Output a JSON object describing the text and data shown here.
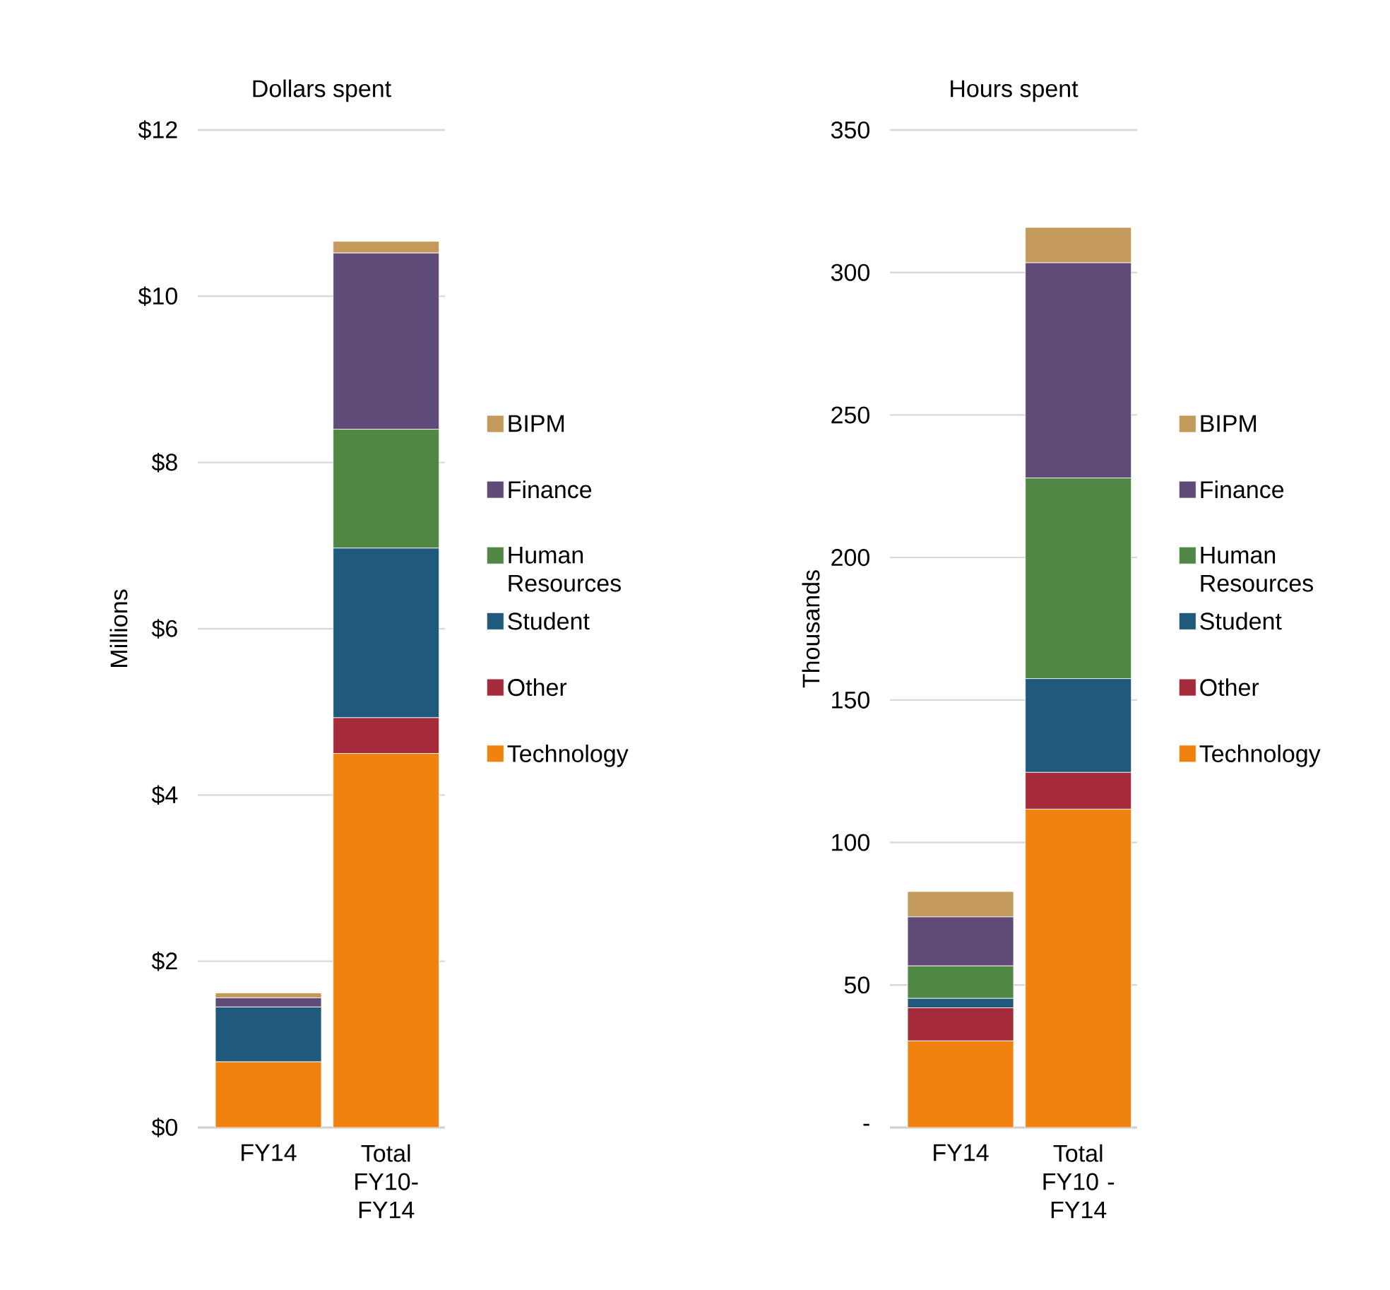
{
  "chart_data": [
    {
      "type": "bar",
      "stacked": true,
      "title": "Dollars spent",
      "ylabel": "Millions",
      "categories": [
        "FY14",
        "Total FY10-FY14"
      ],
      "series": [
        {
          "name": "Technology",
          "color": "#f0820f",
          "values": [
            0.79,
            4.5
          ]
        },
        {
          "name": "Other",
          "color": "#a52a3a",
          "values": [
            0,
            0.43
          ]
        },
        {
          "name": "Student",
          "color": "#1f5a7d",
          "values": [
            0.66,
            2.04
          ]
        },
        {
          "name": "Human Resources",
          "color": "#508745",
          "values": [
            0,
            1.43
          ]
        },
        {
          "name": "Finance",
          "color": "#604a77",
          "values": [
            0.11,
            2.12
          ]
        },
        {
          "name": "BIPM",
          "color": "#c39a5c",
          "values": [
            0.06,
            0.14
          ]
        }
      ],
      "ylim": [
        0,
        12
      ],
      "yticks": [
        {
          "value": 0,
          "label": "$0"
        },
        {
          "value": 2,
          "label": "$2"
        },
        {
          "value": 4,
          "label": "$4"
        },
        {
          "value": 6,
          "label": "$6"
        },
        {
          "value": 8,
          "label": "$8"
        },
        {
          "value": 10,
          "label": "$10"
        },
        {
          "value": 12,
          "label": "$12"
        }
      ],
      "grid": "y",
      "legend": "right"
    },
    {
      "type": "bar",
      "stacked": true,
      "title": "Hours spent",
      "ylabel": "Thousands",
      "categories": [
        "FY14",
        "Total FY10 - FY14"
      ],
      "series": [
        {
          "name": "Technology",
          "color": "#f0820f",
          "values": [
            30.4,
            111.7
          ]
        },
        {
          "name": "Other",
          "color": "#a52a3a",
          "values": [
            11.6,
            12.9
          ]
        },
        {
          "name": "Student",
          "color": "#1f5a7d",
          "values": [
            3.3,
            32.9
          ]
        },
        {
          "name": "Human Resources",
          "color": "#508745",
          "values": [
            11.4,
            70.4
          ]
        },
        {
          "name": "Finance",
          "color": "#604a77",
          "values": [
            17.2,
            75.5
          ]
        },
        {
          "name": "BIPM",
          "color": "#c39a5c",
          "values": [
            8.9,
            12.4
          ]
        }
      ],
      "ylim": [
        0,
        350
      ],
      "yticks": [
        {
          "value": 0,
          "label": "-"
        },
        50,
        100,
        150,
        200,
        250,
        300,
        350
      ],
      "grid": "y",
      "legend": "right"
    }
  ]
}
